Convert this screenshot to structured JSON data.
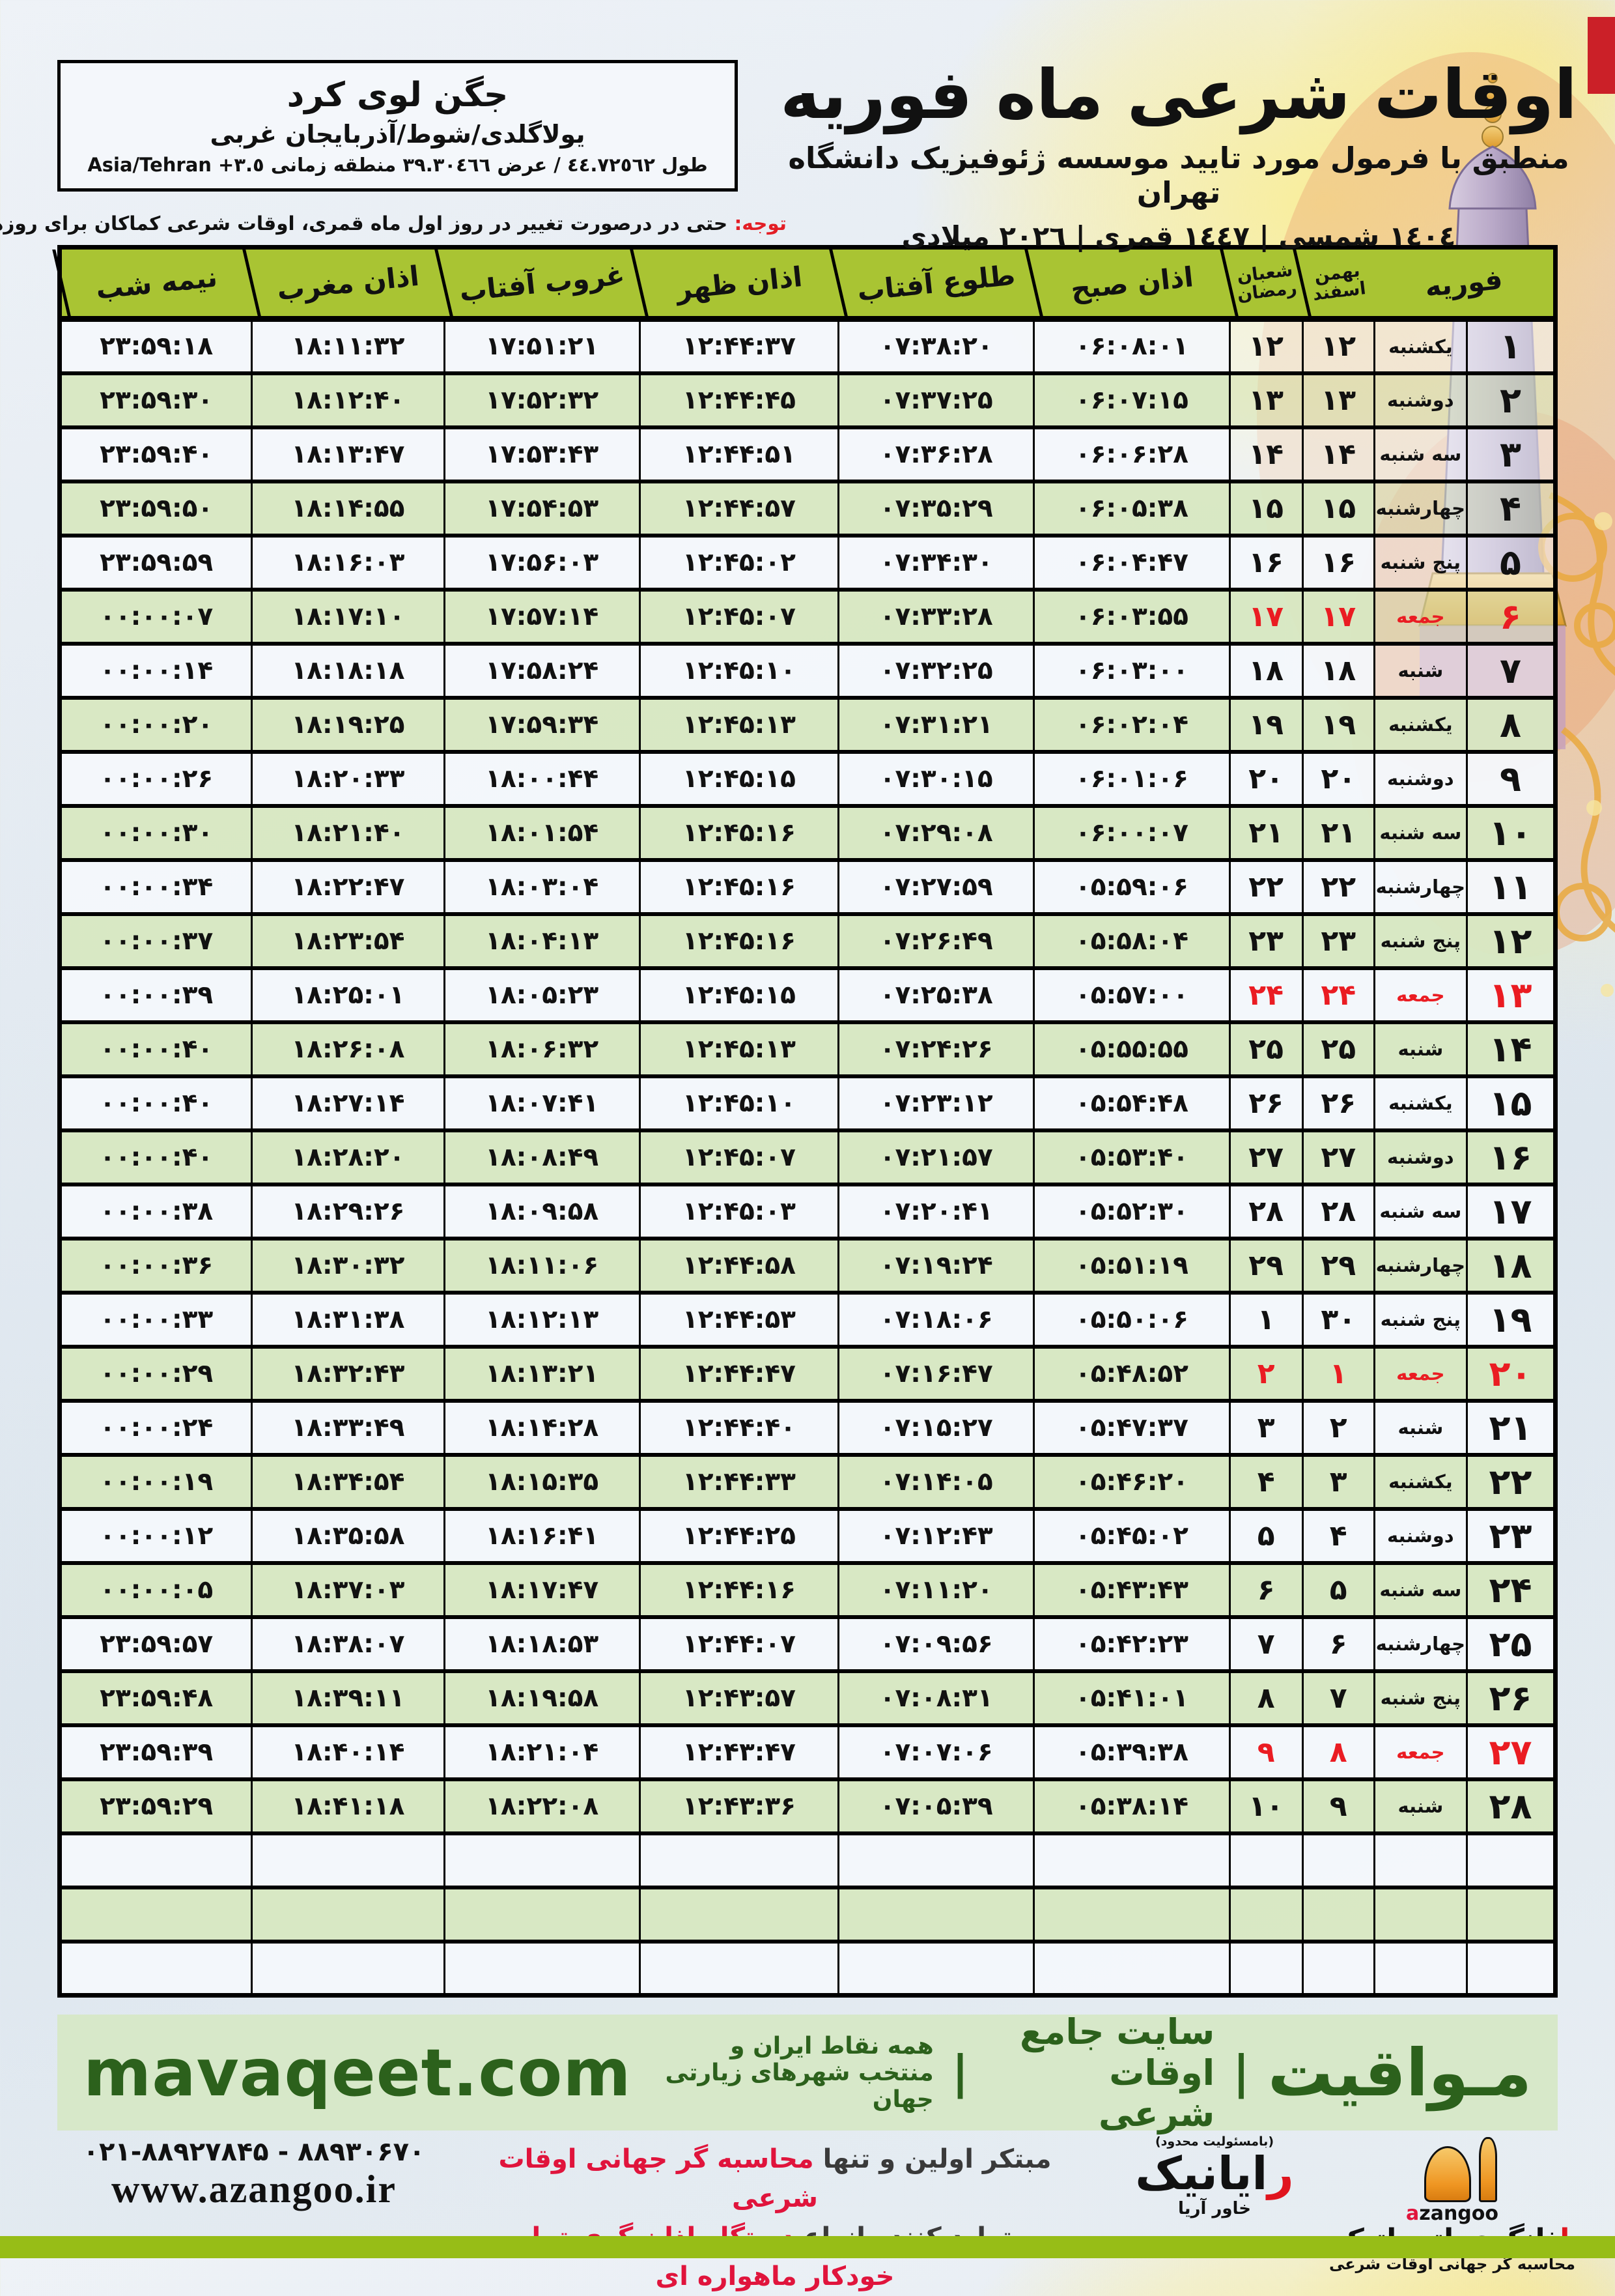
{
  "page": {
    "title": "اوقات شرعی ماه فوریه",
    "subtitle": "منطبق با فرمول مورد تایید موسسه ژئوفیزیک دانشگاه تهران",
    "years": "١٤٠٤ شمسی | ١٤٤٧ قمری | ٢٠٢٦ میلادی"
  },
  "location": {
    "name": "جگن لوی کرد",
    "region": "یولاگلدی/شوط/آذربایجان غربی",
    "coords": "طول ٤٤.٧٢٥٦٢ / عرض ٣٩.٣٠٤٦٦ منطقه زمانی ٣.٥+ Asia/Tehran"
  },
  "note": {
    "label": "توجه:",
    "text": " حتی در درصورت تغییر در روز اول ماه قمری، اوقات شرعی کماکان برای روزهای شمسی و میلادی معتبر است."
  },
  "table": {
    "headers": {
      "feb": "فوریه",
      "solar_top": "بهمن",
      "solar_bottom": "اسفند",
      "lunar_top": "شعبان",
      "lunar_bottom": "رمضان",
      "fajr": "اذان صبح",
      "sunrise": "طلوع آفتاب",
      "dhuhr": "اذان ظهر",
      "sunset": "غروب آفتاب",
      "maghrib": "اذان مغرب",
      "midnight": "نیمه شب"
    },
    "empty_rows": 3,
    "rows": [
      {
        "day": 1,
        "weekday": "یکشنبه",
        "solar": 12,
        "lunar": 12,
        "fajr": "06:08:01",
        "sunrise": "07:38:20",
        "dhuhr": "12:44:37",
        "sunset": "17:51:21",
        "maghrib": "18:11:32",
        "midnight": "23:59:18",
        "friday": false
      },
      {
        "day": 2,
        "weekday": "دوشنبه",
        "solar": 13,
        "lunar": 13,
        "fajr": "06:07:15",
        "sunrise": "07:37:25",
        "dhuhr": "12:44:45",
        "sunset": "17:52:32",
        "maghrib": "18:12:40",
        "midnight": "23:59:30",
        "friday": false
      },
      {
        "day": 3,
        "weekday": "سه شنبه",
        "solar": 14,
        "lunar": 14,
        "fajr": "06:06:28",
        "sunrise": "07:36:28",
        "dhuhr": "12:44:51",
        "sunset": "17:53:43",
        "maghrib": "18:13:47",
        "midnight": "23:59:40",
        "friday": false
      },
      {
        "day": 4,
        "weekday": "چهارشنبه",
        "solar": 15,
        "lunar": 15,
        "fajr": "06:05:38",
        "sunrise": "07:35:29",
        "dhuhr": "12:44:57",
        "sunset": "17:54:53",
        "maghrib": "18:14:55",
        "midnight": "23:59:50",
        "friday": false
      },
      {
        "day": 5,
        "weekday": "پنج شنبه",
        "solar": 16,
        "lunar": 16,
        "fajr": "06:04:47",
        "sunrise": "07:34:30",
        "dhuhr": "12:45:02",
        "sunset": "17:56:03",
        "maghrib": "18:16:03",
        "midnight": "23:59:59",
        "friday": false
      },
      {
        "day": 6,
        "weekday": "جمعه",
        "solar": 17,
        "lunar": 17,
        "fajr": "06:03:55",
        "sunrise": "07:33:28",
        "dhuhr": "12:45:07",
        "sunset": "17:57:14",
        "maghrib": "18:17:10",
        "midnight": "00:00:07",
        "friday": true
      },
      {
        "day": 7,
        "weekday": "شنبه",
        "solar": 18,
        "lunar": 18,
        "fajr": "06:03:00",
        "sunrise": "07:32:25",
        "dhuhr": "12:45:10",
        "sunset": "17:58:24",
        "maghrib": "18:18:18",
        "midnight": "00:00:14",
        "friday": false
      },
      {
        "day": 8,
        "weekday": "یکشنبه",
        "solar": 19,
        "lunar": 19,
        "fajr": "06:02:04",
        "sunrise": "07:31:21",
        "dhuhr": "12:45:13",
        "sunset": "17:59:34",
        "maghrib": "18:19:25",
        "midnight": "00:00:20",
        "friday": false
      },
      {
        "day": 9,
        "weekday": "دوشنبه",
        "solar": 20,
        "lunar": 20,
        "fajr": "06:01:06",
        "sunrise": "07:30:15",
        "dhuhr": "12:45:15",
        "sunset": "18:00:44",
        "maghrib": "18:20:33",
        "midnight": "00:00:26",
        "friday": false
      },
      {
        "day": 10,
        "weekday": "سه شنبه",
        "solar": 21,
        "lunar": 21,
        "fajr": "06:00:07",
        "sunrise": "07:29:08",
        "dhuhr": "12:45:16",
        "sunset": "18:01:54",
        "maghrib": "18:21:40",
        "midnight": "00:00:30",
        "friday": false
      },
      {
        "day": 11,
        "weekday": "چهارشنبه",
        "solar": 22,
        "lunar": 22,
        "fajr": "05:59:06",
        "sunrise": "07:27:59",
        "dhuhr": "12:45:16",
        "sunset": "18:03:04",
        "maghrib": "18:22:47",
        "midnight": "00:00:34",
        "friday": false
      },
      {
        "day": 12,
        "weekday": "پنج شنبه",
        "solar": 23,
        "lunar": 23,
        "fajr": "05:58:04",
        "sunrise": "07:26:49",
        "dhuhr": "12:45:16",
        "sunset": "18:04:13",
        "maghrib": "18:23:54",
        "midnight": "00:00:37",
        "friday": false
      },
      {
        "day": 13,
        "weekday": "جمعه",
        "solar": 24,
        "lunar": 24,
        "fajr": "05:57:00",
        "sunrise": "07:25:38",
        "dhuhr": "12:45:15",
        "sunset": "18:05:23",
        "maghrib": "18:25:01",
        "midnight": "00:00:39",
        "friday": true
      },
      {
        "day": 14,
        "weekday": "شنبه",
        "solar": 25,
        "lunar": 25,
        "fajr": "05:55:55",
        "sunrise": "07:24:26",
        "dhuhr": "12:45:13",
        "sunset": "18:06:32",
        "maghrib": "18:26:08",
        "midnight": "00:00:40",
        "friday": false
      },
      {
        "day": 15,
        "weekday": "یکشنبه",
        "solar": 26,
        "lunar": 26,
        "fajr": "05:54:48",
        "sunrise": "07:23:12",
        "dhuhr": "12:45:10",
        "sunset": "18:07:41",
        "maghrib": "18:27:14",
        "midnight": "00:00:40",
        "friday": false
      },
      {
        "day": 16,
        "weekday": "دوشنبه",
        "solar": 27,
        "lunar": 27,
        "fajr": "05:53:40",
        "sunrise": "07:21:57",
        "dhuhr": "12:45:07",
        "sunset": "18:08:49",
        "maghrib": "18:28:20",
        "midnight": "00:00:40",
        "friday": false
      },
      {
        "day": 17,
        "weekday": "سه شنبه",
        "solar": 28,
        "lunar": 28,
        "fajr": "05:52:30",
        "sunrise": "07:20:41",
        "dhuhr": "12:45:03",
        "sunset": "18:09:58",
        "maghrib": "18:29:26",
        "midnight": "00:00:38",
        "friday": false
      },
      {
        "day": 18,
        "weekday": "چهارشنبه",
        "solar": 29,
        "lunar": 29,
        "fajr": "05:51:19",
        "sunrise": "07:19:24",
        "dhuhr": "12:44:58",
        "sunset": "18:11:06",
        "maghrib": "18:30:32",
        "midnight": "00:00:36",
        "friday": false
      },
      {
        "day": 19,
        "weekday": "پنج شنبه",
        "solar": 30,
        "lunar": 1,
        "fajr": "05:50:06",
        "sunrise": "07:18:06",
        "dhuhr": "12:44:53",
        "sunset": "18:12:13",
        "maghrib": "18:31:38",
        "midnight": "00:00:33",
        "friday": false
      },
      {
        "day": 20,
        "weekday": "جمعه",
        "solar": 1,
        "lunar": 2,
        "fajr": "05:48:52",
        "sunrise": "07:16:47",
        "dhuhr": "12:44:47",
        "sunset": "18:13:21",
        "maghrib": "18:32:43",
        "midnight": "00:00:29",
        "friday": true
      },
      {
        "day": 21,
        "weekday": "شنبه",
        "solar": 2,
        "lunar": 3,
        "fajr": "05:47:37",
        "sunrise": "07:15:27",
        "dhuhr": "12:44:40",
        "sunset": "18:14:28",
        "maghrib": "18:33:49",
        "midnight": "00:00:24",
        "friday": false
      },
      {
        "day": 22,
        "weekday": "یکشنبه",
        "solar": 3,
        "lunar": 4,
        "fajr": "05:46:20",
        "sunrise": "07:14:05",
        "dhuhr": "12:44:33",
        "sunset": "18:15:35",
        "maghrib": "18:34:54",
        "midnight": "00:00:19",
        "friday": false
      },
      {
        "day": 23,
        "weekday": "دوشنبه",
        "solar": 4,
        "lunar": 5,
        "fajr": "05:45:02",
        "sunrise": "07:12:43",
        "dhuhr": "12:44:25",
        "sunset": "18:16:41",
        "maghrib": "18:35:58",
        "midnight": "00:00:12",
        "friday": false
      },
      {
        "day": 24,
        "weekday": "سه شنبه",
        "solar": 5,
        "lunar": 6,
        "fajr": "05:43:43",
        "sunrise": "07:11:20",
        "dhuhr": "12:44:16",
        "sunset": "18:17:47",
        "maghrib": "18:37:03",
        "midnight": "00:00:05",
        "friday": false
      },
      {
        "day": 25,
        "weekday": "چهارشنبه",
        "solar": 6,
        "lunar": 7,
        "fajr": "05:42:23",
        "sunrise": "07:09:56",
        "dhuhr": "12:44:07",
        "sunset": "18:18:53",
        "maghrib": "18:38:07",
        "midnight": "23:59:57",
        "friday": false
      },
      {
        "day": 26,
        "weekday": "پنج شنبه",
        "solar": 7,
        "lunar": 8,
        "fajr": "05:41:01",
        "sunrise": "07:08:31",
        "dhuhr": "12:43:57",
        "sunset": "18:19:58",
        "maghrib": "18:39:11",
        "midnight": "23:59:48",
        "friday": false
      },
      {
        "day": 27,
        "weekday": "جمعه",
        "solar": 8,
        "lunar": 9,
        "fajr": "05:39:38",
        "sunrise": "07:07:06",
        "dhuhr": "12:43:47",
        "sunset": "18:21:04",
        "maghrib": "18:40:14",
        "midnight": "23:59:39",
        "friday": true
      },
      {
        "day": 28,
        "weekday": "شنبه",
        "solar": 9,
        "lunar": 10,
        "fajr": "05:38:14",
        "sunrise": "07:05:39",
        "dhuhr": "12:43:36",
        "sunset": "18:22:08",
        "maghrib": "18:41:18",
        "midnight": "23:59:29",
        "friday": false
      }
    ]
  },
  "mavaqeet": {
    "brand": "مـواقیت",
    "divider": "|",
    "tagline1": "سایت جامع اوقات شرعی",
    "tagline2": "همه نقاط ایران و منتخب شهرهای زیارتی جهان",
    "domain": "mavaqeet.com"
  },
  "bottom": {
    "phones": "021-88927845 - 88930670",
    "website": "www.azangoo.ir",
    "line1_dark": "مبتکر اولین و تنها ",
    "line1_red": "محاسبه گر جهانی اوقات شرعی",
    "line2_dark": "و تولید کننده انواع ",
    "line2_red": "دستگاه اذان گوی تمام خودکار ماهواره ای",
    "rayanik": {
      "note": "(بامسئولیت محدود)",
      "name_first": "ر",
      "name_rest": "ایانیک",
      "sub": "خاور آریا"
    },
    "azangoo": {
      "name_first": "ا",
      "name_rest": "ذانگوی اتوماتیک",
      "sub": "محاسبه گر جهانی اوقات شرعی",
      "latin_a": "a",
      "latin_rest": "zangoo"
    }
  },
  "colors": {
    "header_green": "#a9c433",
    "row_green": "#d9e7c1",
    "row_light": "#f4f7fa",
    "friday_red": "#ea1c22",
    "band_green": "#d7e8c9",
    "brand_green": "#2c611c",
    "bottom_band_green": "#97bd17"
  }
}
